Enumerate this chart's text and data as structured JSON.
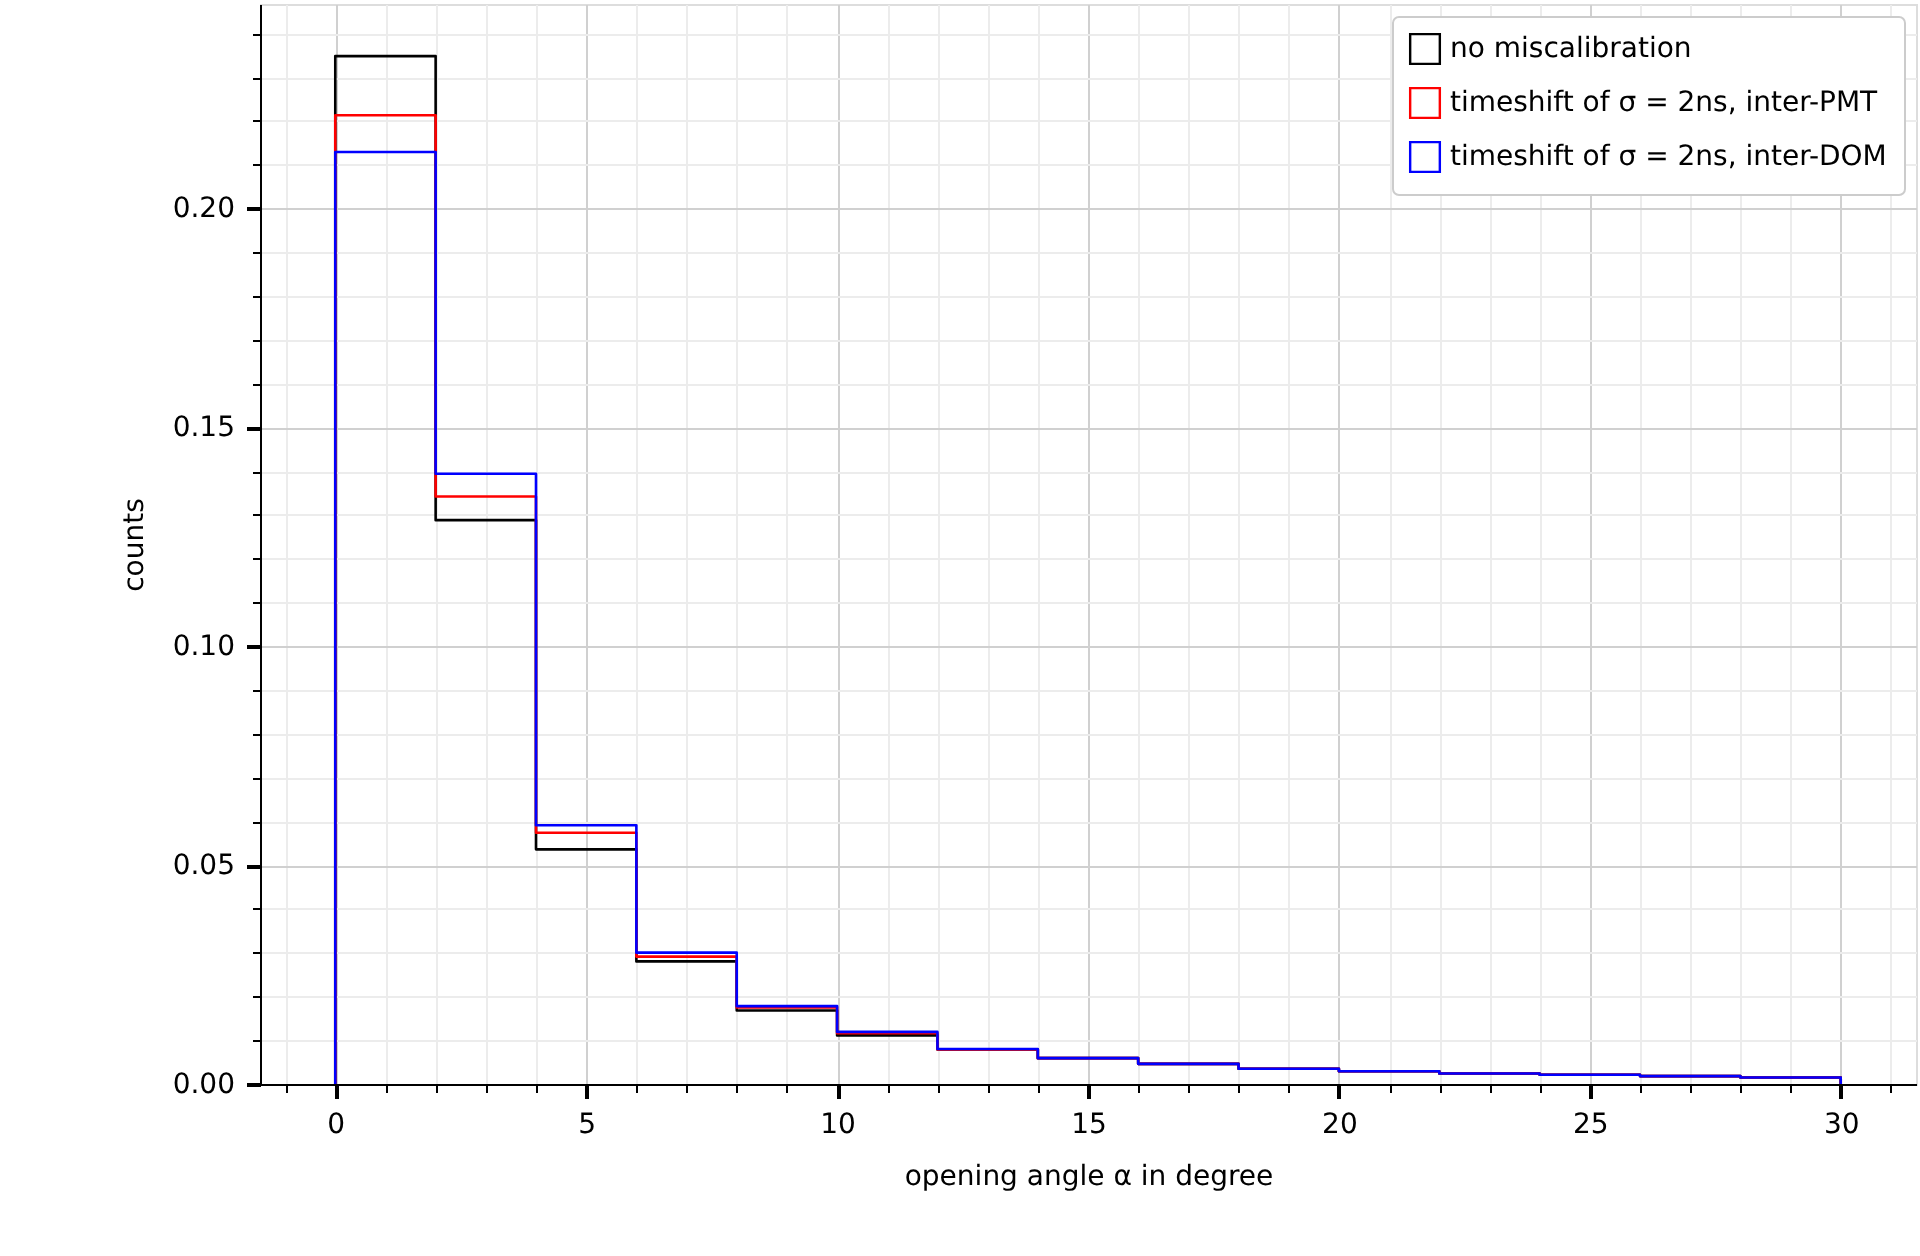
{
  "chart_data": {
    "type": "histogram",
    "xlabel": "opening angle α in degree",
    "ylabel": "counts",
    "bins": [
      0,
      2,
      4,
      6,
      8,
      10,
      12,
      14,
      16,
      18,
      20,
      22,
      24,
      26,
      28,
      30
    ],
    "series": [
      {
        "name": "no miscalibration",
        "color": "#000000",
        "values": [
          0.2348,
          0.1288,
          0.0536,
          0.028,
          0.0168,
          0.0111,
          0.0079,
          0.0059,
          0.0046,
          0.0035,
          0.0029,
          0.0024,
          0.0021,
          0.0018,
          0.0015
        ]
      },
      {
        "name": "timeshift of σ = 2ns, inter-PMT",
        "color": "#ff0000",
        "values": [
          0.2213,
          0.1342,
          0.0574,
          0.0291,
          0.0175,
          0.0116,
          0.0079,
          0.0059,
          0.0046,
          0.0035,
          0.0029,
          0.0024,
          0.0021,
          0.0018,
          0.0015
        ]
      },
      {
        "name": "timeshift of σ = 2ns, inter-DOM",
        "color": "#0000ff",
        "values": [
          0.2129,
          0.1394,
          0.0591,
          0.03,
          0.0178,
          0.0119,
          0.008,
          0.0059,
          0.0046,
          0.0035,
          0.0029,
          0.0024,
          0.0021,
          0.0018,
          0.0015
        ]
      }
    ],
    "xlim": [
      -1.5,
      31.5
    ],
    "xticks": [
      {
        "value": -1,
        "label": null
      },
      0,
      {
        "value": 1,
        "label": null
      },
      {
        "value": 2,
        "label": null
      },
      {
        "value": 3,
        "label": null
      },
      {
        "value": 4,
        "label": null
      },
      5,
      {
        "value": 6,
        "label": null
      },
      {
        "value": 7,
        "label": null
      },
      {
        "value": 8,
        "label": null
      },
      {
        "value": 9,
        "label": null
      },
      10,
      {
        "value": 11,
        "label": null
      },
      {
        "value": 12,
        "label": null
      },
      {
        "value": 13,
        "label": null
      },
      {
        "value": 14,
        "label": null
      },
      15,
      {
        "value": 16,
        "label": null
      },
      {
        "value": 17,
        "label": null
      },
      {
        "value": 18,
        "label": null
      },
      {
        "value": 19,
        "label": null
      },
      20,
      {
        "value": 21,
        "label": null
      },
      {
        "value": 22,
        "label": null
      },
      {
        "value": 23,
        "label": null
      },
      {
        "value": 24,
        "label": null
      },
      25,
      {
        "value": 26,
        "label": null
      },
      {
        "value": 27,
        "label": null
      },
      {
        "value": 28,
        "label": null
      },
      {
        "value": 29,
        "label": null
      },
      30,
      {
        "value": 31,
        "label": null
      }
    ],
    "ylim": [
      0,
      0.2467
    ],
    "yticks": [
      {
        "value": 0,
        "label": "0.00"
      },
      {
        "value": 0.01,
        "label": null
      },
      {
        "value": 0.02,
        "label": null
      },
      {
        "value": 0.03,
        "label": null
      },
      {
        "value": 0.04,
        "label": null
      },
      {
        "value": 0.05,
        "label": "0.05"
      },
      {
        "value": 0.06,
        "label": null
      },
      {
        "value": 0.07,
        "label": null
      },
      {
        "value": 0.08,
        "label": null
      },
      {
        "value": 0.09,
        "label": null
      },
      {
        "value": 0.1,
        "label": "0.10"
      },
      {
        "value": 0.11,
        "label": null
      },
      {
        "value": 0.12,
        "label": null
      },
      {
        "value": 0.13,
        "label": null
      },
      {
        "value": 0.14,
        "label": null
      },
      {
        "value": 0.15,
        "label": "0.15"
      },
      {
        "value": 0.16,
        "label": null
      },
      {
        "value": 0.17,
        "label": null
      },
      {
        "value": 0.18,
        "label": null
      },
      {
        "value": 0.19,
        "label": null
      },
      {
        "value": 0.2,
        "label": "0.20"
      },
      {
        "value": 0.21,
        "label": null
      },
      {
        "value": 0.22,
        "label": null
      },
      {
        "value": 0.23,
        "label": null
      },
      {
        "value": 0.24,
        "label": null
      }
    ],
    "grid": true,
    "legend": "top right",
    "line_style": "solid"
  }
}
